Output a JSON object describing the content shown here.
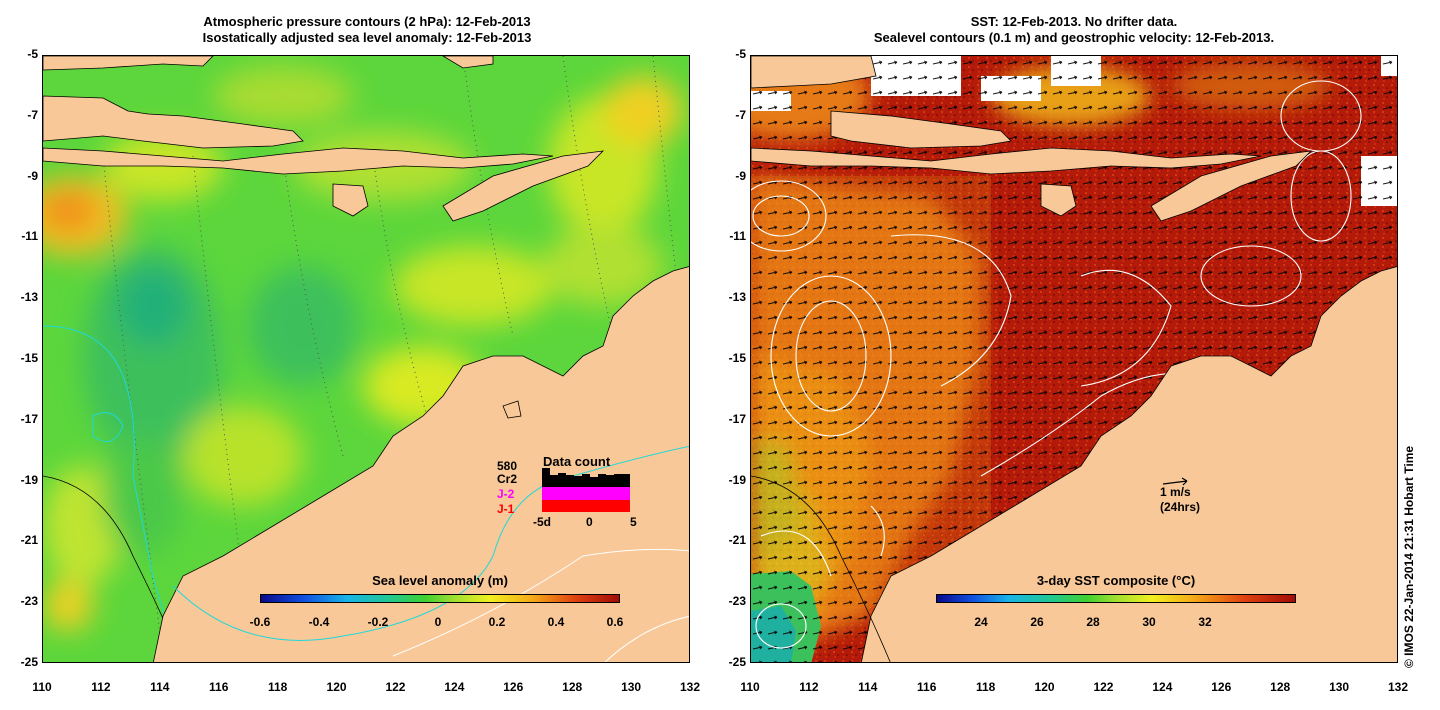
{
  "left_panel": {
    "title_line1": "Atmospheric pressure contours (2 hPa): 12-Feb-2013",
    "title_line2": "Isostatically adjusted sea level anomaly: 12-Feb-2013",
    "colorbar_title": "Sea level anomaly (m)",
    "colorbar_ticks": [
      "-0.6",
      "-0.4",
      "-0.2",
      "0",
      "0.2",
      "0.4",
      "0.6"
    ],
    "data_count": {
      "title": "Data count",
      "max_label": "580",
      "legend": [
        "Cr2",
        "J-2",
        "J-1"
      ],
      "legend_colors": [
        "#000000",
        "#ff00ff",
        "#ff0000"
      ],
      "axis_labels": [
        "-5d",
        "0",
        "5"
      ]
    }
  },
  "right_panel": {
    "title_line1": "SST: 12-Feb-2013. No drifter data.",
    "title_line2": "Sealevel contours (0.1 m) and geostrophic velocity: 12-Feb-2013.",
    "colorbar_title": "3-day SST composite (°C)",
    "colorbar_ticks": [
      "24",
      "26",
      "28",
      "30",
      "32"
    ],
    "scale_label_1": "1 m/s",
    "scale_label_2": "(24hrs)"
  },
  "axes": {
    "y_ticks": [
      "-5",
      "-7",
      "-9",
      "-11",
      "-13",
      "-15",
      "-17",
      "-19",
      "-21",
      "-23",
      "-25"
    ],
    "x_ticks": [
      "110",
      "112",
      "114",
      "116",
      "118",
      "120",
      "122",
      "124",
      "126",
      "128",
      "130",
      "132"
    ]
  },
  "copyright": "© IMOS 22-Jan-2014 21:31 Hobart Time",
  "colors": {
    "land": "#f8c898",
    "sla_base": "#5cd63c",
    "sst_base": "#b01c0c"
  }
}
